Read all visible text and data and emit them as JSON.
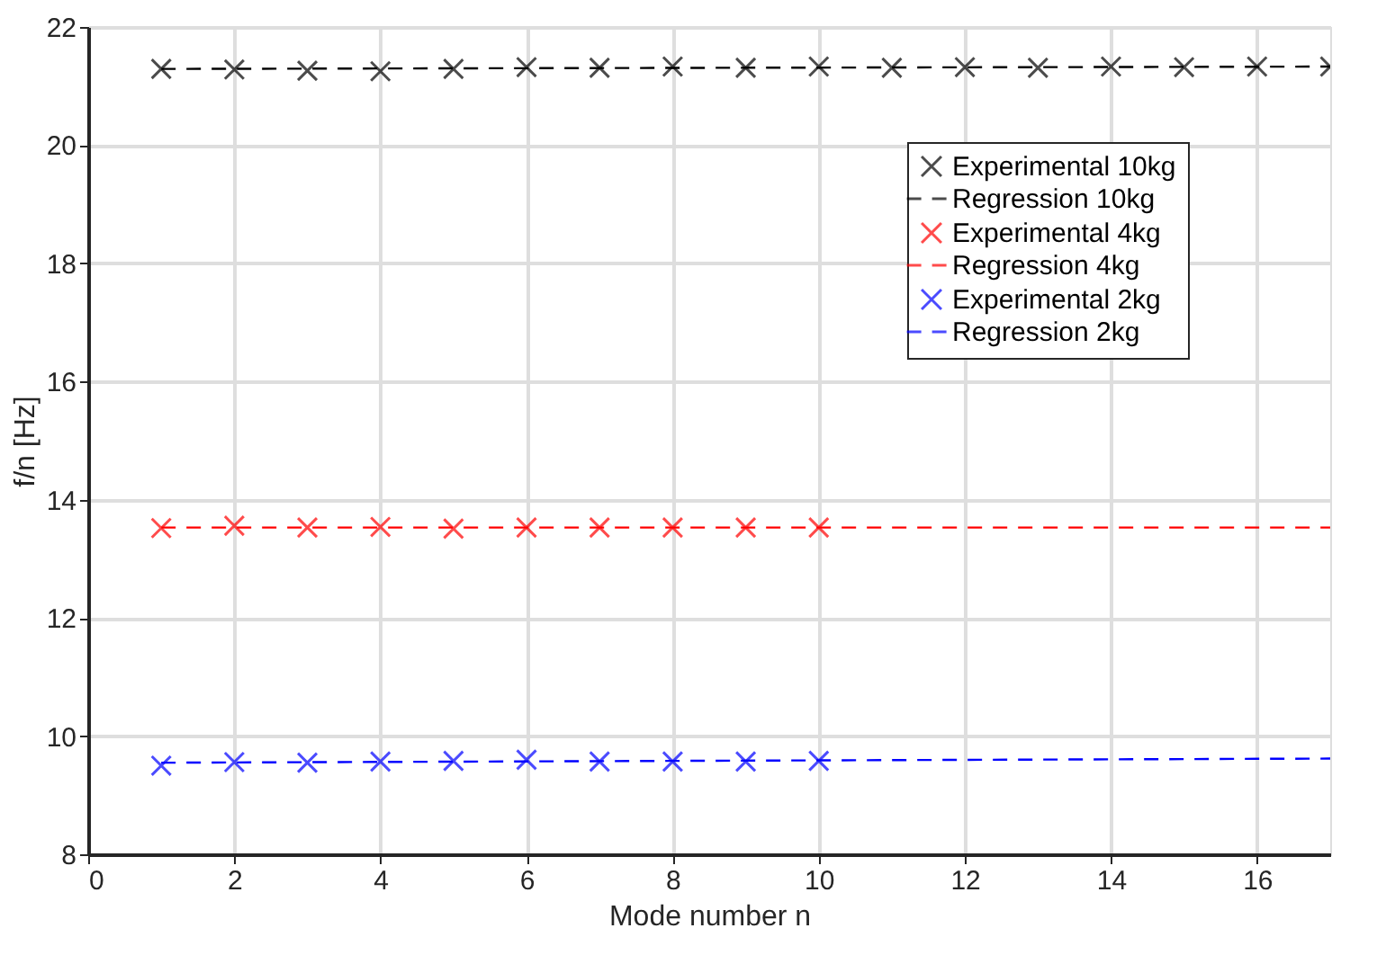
{
  "chart_data": {
    "type": "scatter",
    "xlabel": "Mode number n",
    "ylabel": "f/n [Hz]",
    "xlim": [
      0,
      17
    ],
    "ylim": [
      8,
      22
    ],
    "xticks": [
      0,
      2,
      4,
      6,
      8,
      10,
      12,
      14,
      16
    ],
    "yticks": [
      8,
      10,
      12,
      14,
      16,
      18,
      20,
      22
    ],
    "grid": true,
    "legend": "top right",
    "marker": "cross",
    "series": [
      {
        "name": "Experimental 10kg",
        "color": "#000000",
        "x": [
          1,
          2,
          3,
          4,
          5,
          6,
          7,
          8,
          9,
          10,
          11,
          12,
          13,
          14,
          15,
          16,
          17
        ],
        "values": [
          21.29,
          21.28,
          21.26,
          21.25,
          21.29,
          21.32,
          21.31,
          21.33,
          21.31,
          21.33,
          21.31,
          21.32,
          21.31,
          21.33,
          21.32,
          21.33,
          21.33
        ]
      },
      {
        "name": "Regression 10kg",
        "type": "line",
        "color": "#000000",
        "line_style": "dashed",
        "marker": "none",
        "x": [
          1,
          17
        ],
        "values": [
          21.29,
          21.33
        ]
      },
      {
        "name": "Experimental 4kg",
        "color": "#ff0000",
        "x": [
          1,
          2,
          3,
          4,
          5,
          6,
          7,
          8,
          9,
          10
        ],
        "values": [
          13.52,
          13.56,
          13.53,
          13.54,
          13.51,
          13.53,
          13.53,
          13.53,
          13.53,
          13.53
        ]
      },
      {
        "name": "Regression 4kg",
        "type": "line",
        "color": "#ff0000",
        "line_style": "dashed",
        "marker": "none",
        "x": [
          1,
          17
        ],
        "values": [
          13.53,
          13.53
        ]
      },
      {
        "name": "Experimental 2kg",
        "color": "#0000ff",
        "x": [
          1,
          2,
          3,
          4,
          5,
          6,
          7,
          8,
          9,
          10
        ],
        "values": [
          9.5,
          9.56,
          9.55,
          9.57,
          9.58,
          9.6,
          9.57,
          9.57,
          9.57,
          9.58
        ]
      },
      {
        "name": "Regression 2kg",
        "type": "line",
        "color": "#0000ff",
        "line_style": "dashed",
        "marker": "none",
        "x": [
          1,
          17
        ],
        "values": [
          9.55,
          9.62
        ]
      }
    ]
  }
}
